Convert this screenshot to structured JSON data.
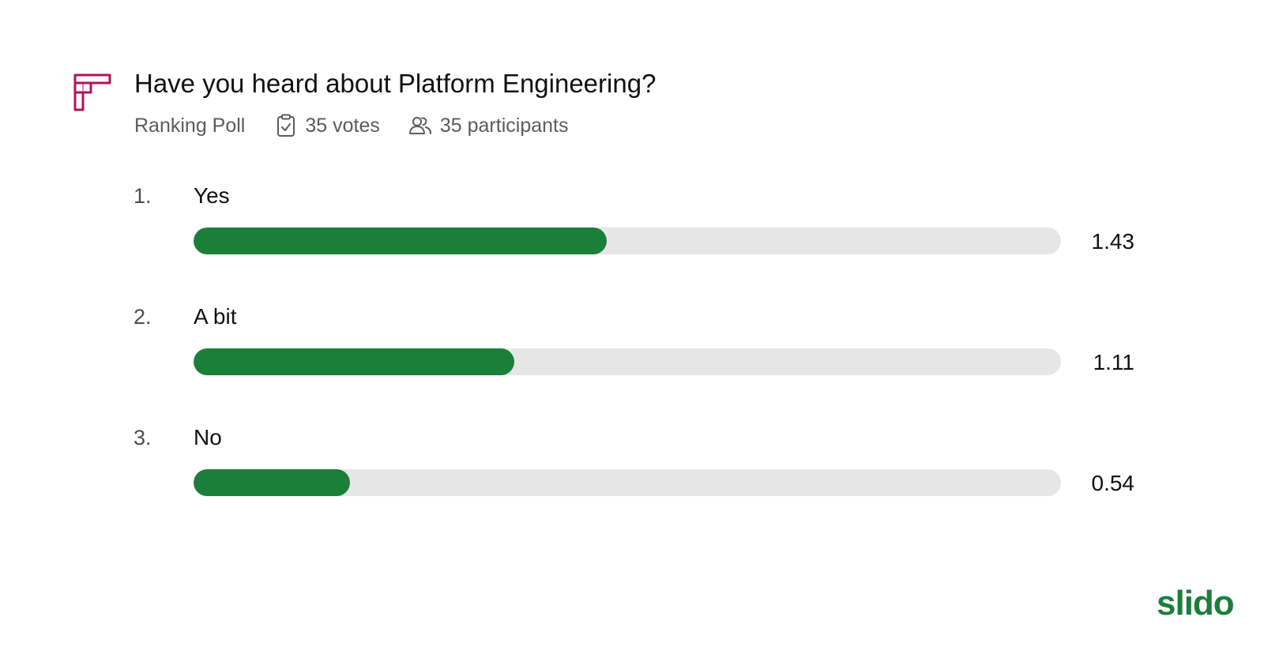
{
  "poll": {
    "title": "Have you heard about Platform Engineering?",
    "type": "Ranking Poll",
    "votes": "35 votes",
    "participants": "35 participants",
    "max_score": 3
  },
  "options": [
    {
      "rank": "1.",
      "label": "Yes",
      "score": "1.43",
      "value": 1.43
    },
    {
      "rank": "2.",
      "label": "A bit",
      "score": "1.11",
      "value": 1.11
    },
    {
      "rank": "3.",
      "label": "No",
      "score": "0.54",
      "value": 0.54
    }
  ],
  "brand": {
    "name": "slido"
  },
  "colors": {
    "accent": "#1b7f3a",
    "track": "#e6e6e6",
    "icon": "#b0135e"
  },
  "icons": {
    "poll_type": "ranking-poll-icon",
    "votes": "clipboard-check-icon",
    "participants": "users-icon"
  }
}
